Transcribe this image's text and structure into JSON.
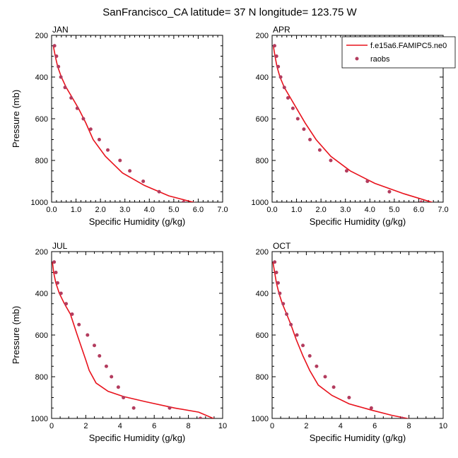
{
  "title": "SanFrancisco_CA  latitude= 37 N longitude= 123.75 W",
  "legend": {
    "model_label": "f.e15a6.FAMIPC5.ne0",
    "obs_label": "raobs",
    "model_color": "#e8121c",
    "obs_color": "#b33c5e"
  },
  "chart_data": [
    {
      "type": "line",
      "panel_title": "JAN",
      "xlabel": "Specific Humidity (g/kg)",
      "ylabel": "Pressure (mb)",
      "xlim": [
        0,
        7
      ],
      "ylim": [
        1000,
        200
      ],
      "xticks": [
        "0.0",
        "1.0",
        "2.0",
        "3.0",
        "4.0",
        "5.0",
        "6.0",
        "7.0"
      ],
      "yticks": [
        "200",
        "400",
        "600",
        "800",
        "1000"
      ],
      "y_inverted": true,
      "grid": false,
      "legend_position": "none",
      "series": [
        {
          "name": "f.e15a6.FAMIPC5.ne0",
          "style": "line",
          "x": [
            0.07,
            0.15,
            0.25,
            0.4,
            0.6,
            0.85,
            1.1,
            1.4,
            1.7,
            2.2,
            2.9,
            3.8,
            4.8,
            6.1
          ],
          "y": [
            250,
            300,
            350,
            400,
            450,
            500,
            550,
            620,
            700,
            780,
            860,
            920,
            970,
            1010
          ]
        },
        {
          "name": "raobs",
          "style": "marker",
          "x": [
            0.12,
            0.2,
            0.28,
            0.38,
            0.55,
            0.8,
            1.05,
            1.3,
            1.6,
            1.95,
            2.3,
            2.8,
            3.2,
            3.75,
            4.4,
            5.4
          ],
          "y": [
            250,
            300,
            350,
            400,
            450,
            500,
            550,
            600,
            650,
            700,
            750,
            800,
            850,
            900,
            950,
            1000
          ]
        }
      ]
    },
    {
      "type": "line",
      "panel_title": "APR",
      "xlabel": "Specific Humidity (g/kg)",
      "ylabel": "",
      "xlim": [
        0,
        7
      ],
      "ylim": [
        1000,
        200
      ],
      "xticks": [
        "0.0",
        "1.0",
        "2.0",
        "3.0",
        "4.0",
        "5.0",
        "6.0",
        "7.0"
      ],
      "yticks": [
        "200",
        "400",
        "600",
        "800",
        "1000"
      ],
      "y_inverted": true,
      "grid": false,
      "legend_position": "top-right",
      "series": [
        {
          "name": "f.e15a6.FAMIPC5.ne0",
          "style": "line",
          "x": [
            0.05,
            0.12,
            0.2,
            0.32,
            0.5,
            0.75,
            1.0,
            1.35,
            1.8,
            2.4,
            3.2,
            4.2,
            5.4,
            6.8
          ],
          "y": [
            250,
            300,
            350,
            400,
            450,
            500,
            550,
            620,
            700,
            780,
            850,
            910,
            960,
            1010
          ]
        },
        {
          "name": "raobs",
          "style": "marker",
          "x": [
            0.1,
            0.18,
            0.25,
            0.35,
            0.5,
            0.65,
            0.85,
            1.05,
            1.3,
            1.55,
            1.95,
            2.4,
            3.05,
            3.9,
            4.8,
            6.1
          ],
          "y": [
            250,
            300,
            350,
            400,
            450,
            500,
            550,
            600,
            650,
            700,
            750,
            800,
            850,
            900,
            950,
            1000
          ]
        }
      ]
    },
    {
      "type": "line",
      "panel_title": "JUL",
      "xlabel": "Specific Humidity (g/kg)",
      "ylabel": "Pressure (mb)",
      "xlim": [
        0,
        10
      ],
      "ylim": [
        1000,
        200
      ],
      "xticks": [
        "0",
        "2",
        "4",
        "6",
        "8",
        "10"
      ],
      "yticks": [
        "200",
        "400",
        "600",
        "800",
        "1000"
      ],
      "y_inverted": true,
      "grid": false,
      "legend_position": "none",
      "series": [
        {
          "name": "f.e15a6.FAMIPC5.ne0",
          "style": "line",
          "x": [
            0.05,
            0.12,
            0.25,
            0.45,
            0.75,
            1.1,
            1.5,
            2.0,
            2.2,
            2.6,
            3.3,
            4.2,
            5.5,
            7.2,
            8.6,
            9.6
          ],
          "y": [
            250,
            300,
            350,
            400,
            450,
            500,
            600,
            720,
            770,
            830,
            870,
            895,
            920,
            950,
            970,
            1005
          ]
        },
        {
          "name": "raobs",
          "style": "marker",
          "x": [
            0.15,
            0.25,
            0.35,
            0.55,
            0.85,
            1.2,
            1.6,
            2.1,
            2.5,
            2.8,
            3.2,
            3.5,
            3.9,
            4.2,
            4.8,
            6.9,
            8.7
          ],
          "y": [
            250,
            300,
            350,
            400,
            450,
            500,
            550,
            600,
            650,
            700,
            750,
            800,
            850,
            900,
            950,
            950,
            1000
          ]
        }
      ]
    },
    {
      "type": "line",
      "panel_title": "OCT",
      "xlabel": "Specific Humidity (g/kg)",
      "ylabel": "",
      "xlim": [
        0,
        10
      ],
      "ylim": [
        1000,
        200
      ],
      "xticks": [
        "0",
        "2",
        "4",
        "6",
        "8",
        "10"
      ],
      "yticks": [
        "200",
        "400",
        "600",
        "800",
        "1000"
      ],
      "y_inverted": true,
      "grid": false,
      "legend_position": "none",
      "series": [
        {
          "name": "f.e15a6.FAMIPC5.ne0",
          "style": "line",
          "x": [
            0.05,
            0.15,
            0.25,
            0.4,
            0.6,
            0.85,
            1.1,
            1.4,
            1.8,
            2.2,
            2.7,
            3.5,
            4.5,
            5.8,
            7.0,
            8.2
          ],
          "y": [
            250,
            300,
            350,
            400,
            450,
            500,
            550,
            620,
            700,
            770,
            840,
            890,
            930,
            960,
            985,
            1005
          ]
        },
        {
          "name": "raobs",
          "style": "marker",
          "x": [
            0.15,
            0.25,
            0.35,
            0.45,
            0.65,
            0.85,
            1.1,
            1.45,
            1.8,
            2.2,
            2.6,
            3.1,
            3.6,
            4.5,
            5.8,
            7.6
          ],
          "y": [
            250,
            300,
            350,
            400,
            450,
            500,
            550,
            600,
            650,
            700,
            750,
            800,
            850,
            900,
            950,
            1000
          ]
        }
      ]
    }
  ]
}
